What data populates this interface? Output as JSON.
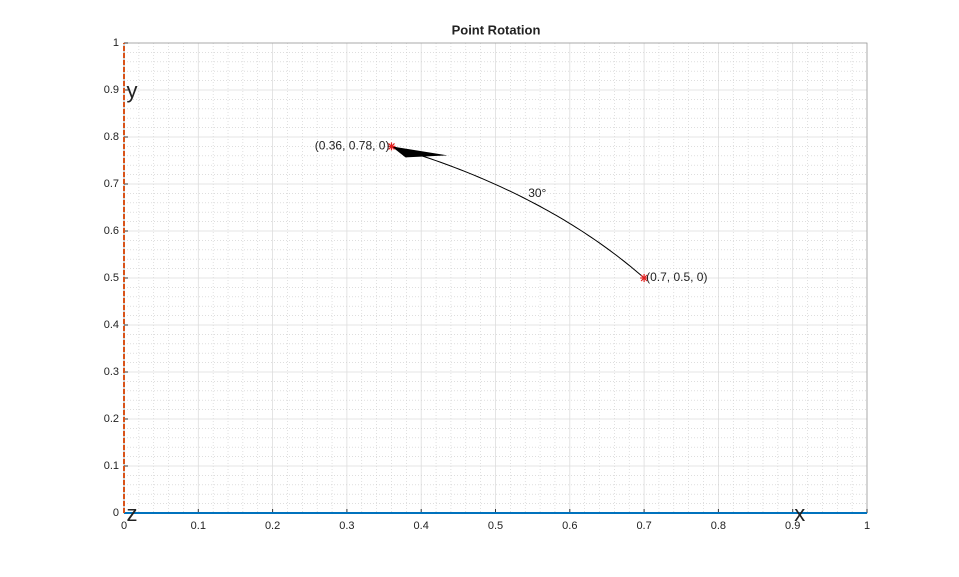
{
  "chart_data": {
    "type": "rotation",
    "title": "Point Rotation",
    "points": {
      "x": [
        0.7,
        0.36
      ],
      "y": [
        0.5,
        0.78
      ],
      "labels": [
        "(0.7, 0.5, 0)",
        "(0.36, 0.78, 0)"
      ],
      "color": "#e02020"
    },
    "arc_color": "#000000",
    "arc_label": "30°",
    "axis_names": {
      "x": "x",
      "y": "y",
      "z": "z"
    },
    "x_axis_color": "#0072bd",
    "y_axis_color": "#d95319",
    "xlim": [
      0,
      1
    ],
    "ylim": [
      0,
      1
    ],
    "xticks": [
      0,
      0.1,
      0.2,
      0.3,
      0.4,
      0.5,
      0.6,
      0.7,
      0.8,
      0.9,
      1
    ],
    "yticks": [
      0,
      0.1,
      0.2,
      0.3,
      0.4,
      0.5,
      0.6,
      0.7,
      0.8,
      0.9,
      1
    ],
    "grid": true,
    "minor_grid": true
  }
}
